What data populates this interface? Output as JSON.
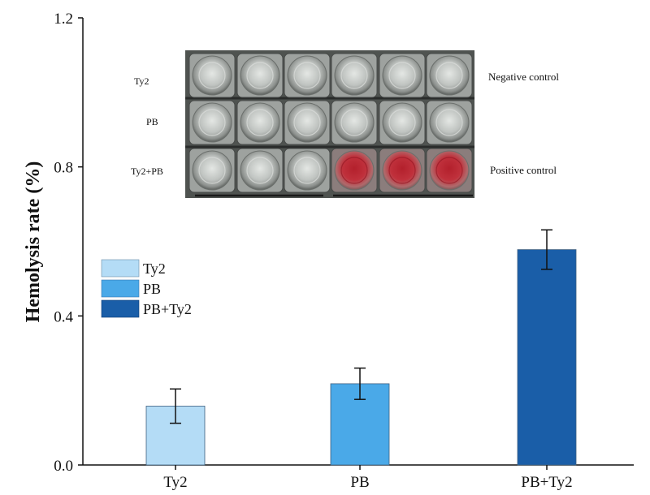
{
  "chart_data": {
    "type": "bar",
    "ylabel": "Hemolysis rate (%)",
    "xlabel": "",
    "ylim": [
      0,
      1.2
    ],
    "yticks": [
      0.0,
      0.4,
      0.8,
      1.2
    ],
    "ytick_labels": [
      "0.0",
      "0.4",
      "0.8",
      "1.2"
    ],
    "categories": [
      "Ty2",
      "PB",
      "PB+Ty2"
    ],
    "values": [
      0.158,
      0.218,
      0.578
    ],
    "errors": [
      0.046,
      0.042,
      0.053
    ],
    "colors": [
      "#b4dcf6",
      "#4aa9e8",
      "#1a5ea8"
    ],
    "legend": {
      "placement": "left-middle",
      "entries": [
        "Ty2",
        "PB",
        "PB+Ty2"
      ]
    },
    "inset_photo": {
      "row_labels": [
        "Ty2",
        "PB",
        "Ty2+PB"
      ],
      "right_labels": [
        "Negative control",
        "Positive control"
      ]
    }
  }
}
